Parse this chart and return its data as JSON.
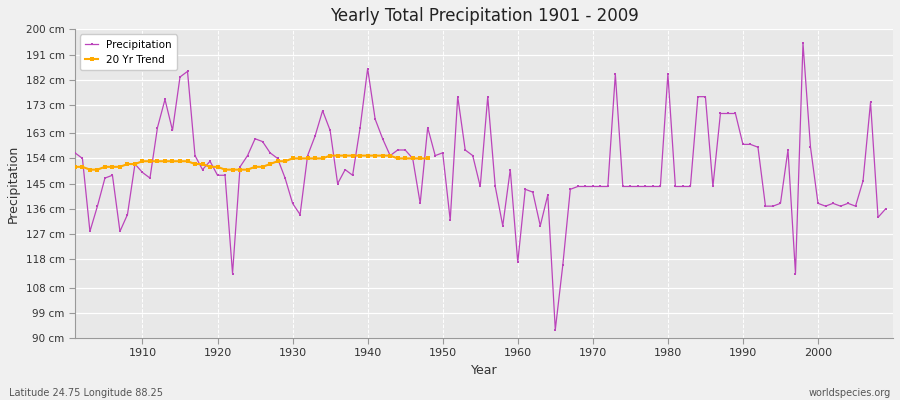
{
  "title": "Yearly Total Precipitation 1901 - 2009",
  "xlabel": "Year",
  "ylabel": "Precipitation",
  "lat_lon_label": "Latitude 24.75 Longitude 88.25",
  "watermark": "worldspecies.org",
  "ylim": [
    90,
    200
  ],
  "yticks": [
    90,
    99,
    108,
    118,
    127,
    136,
    145,
    154,
    163,
    173,
    182,
    191,
    200
  ],
  "ytick_labels": [
    "90 cm",
    "99 cm",
    "108 cm",
    "118 cm",
    "127 cm",
    "136 cm",
    "145 cm",
    "154 cm",
    "163 cm",
    "173 cm",
    "182 cm",
    "191 cm",
    "200 cm"
  ],
  "bg_color": "#f0f0f0",
  "plot_bg_color": "#e8e8e8",
  "line_color": "#bb44bb",
  "trend_color": "#ffaa00",
  "years": [
    1901,
    1902,
    1903,
    1904,
    1905,
    1906,
    1907,
    1908,
    1909,
    1910,
    1911,
    1912,
    1913,
    1914,
    1915,
    1916,
    1917,
    1918,
    1919,
    1920,
    1921,
    1922,
    1923,
    1924,
    1925,
    1926,
    1927,
    1928,
    1929,
    1930,
    1931,
    1932,
    1933,
    1934,
    1935,
    1936,
    1937,
    1938,
    1939,
    1940,
    1941,
    1942,
    1943,
    1944,
    1945,
    1946,
    1947,
    1948,
    1949,
    1950,
    1951,
    1952,
    1953,
    1954,
    1955,
    1956,
    1957,
    1958,
    1959,
    1960,
    1961,
    1962,
    1963,
    1964,
    1965,
    1966,
    1967,
    1968,
    1969,
    1970,
    1971,
    1972,
    1973,
    1974,
    1975,
    1976,
    1977,
    1978,
    1979,
    1980,
    1981,
    1982,
    1983,
    1984,
    1985,
    1986,
    1987,
    1988,
    1989,
    1990,
    1991,
    1992,
    1993,
    1994,
    1995,
    1996,
    1997,
    1998,
    1999,
    2000,
    2001,
    2002,
    2003,
    2004,
    2005,
    2006,
    2007,
    2008,
    2009
  ],
  "precipitation": [
    156,
    154,
    128,
    137,
    147,
    148,
    128,
    134,
    152,
    149,
    147,
    165,
    175,
    164,
    183,
    185,
    155,
    150,
    153,
    148,
    148,
    113,
    151,
    155,
    161,
    160,
    156,
    154,
    147,
    138,
    134,
    155,
    162,
    171,
    164,
    145,
    150,
    148,
    165,
    186,
    168,
    161,
    155,
    157,
    157,
    154,
    138,
    165,
    155,
    156,
    132,
    176,
    157,
    155,
    144,
    176,
    144,
    130,
    150,
    117,
    143,
    142,
    130,
    141,
    93,
    116,
    143,
    144,
    144,
    144,
    144,
    144,
    184,
    144,
    144,
    144,
    144,
    144,
    144,
    184,
    144,
    144,
    144,
    176,
    176,
    144,
    170,
    170,
    170,
    159,
    159,
    158,
    137,
    137,
    138,
    157,
    113,
    195,
    158,
    138,
    137,
    138,
    137,
    138,
    137,
    146,
    174,
    133,
    136
  ],
  "trend_years": [
    1901,
    1902,
    1903,
    1904,
    1905,
    1906,
    1907,
    1908,
    1909,
    1910,
    1911,
    1912,
    1913,
    1914,
    1915,
    1916,
    1917,
    1918,
    1919,
    1920,
    1921,
    1922,
    1923,
    1924,
    1925,
    1926,
    1927,
    1928,
    1929,
    1930,
    1931,
    1932,
    1933,
    1934,
    1935,
    1936,
    1937,
    1938,
    1939,
    1940,
    1941,
    1942,
    1943,
    1944,
    1945,
    1946,
    1947,
    1948
  ],
  "trend_values": [
    151,
    151,
    150,
    150,
    151,
    151,
    151,
    152,
    152,
    153,
    153,
    153,
    153,
    153,
    153,
    153,
    152,
    152,
    151,
    151,
    150,
    150,
    150,
    150,
    151,
    151,
    152,
    153,
    153,
    154,
    154,
    154,
    154,
    154,
    155,
    155,
    155,
    155,
    155,
    155,
    155,
    155,
    155,
    154,
    154,
    154,
    154,
    154
  ],
  "xticks": [
    1910,
    1920,
    1930,
    1940,
    1950,
    1960,
    1970,
    1980,
    1990,
    2000
  ]
}
